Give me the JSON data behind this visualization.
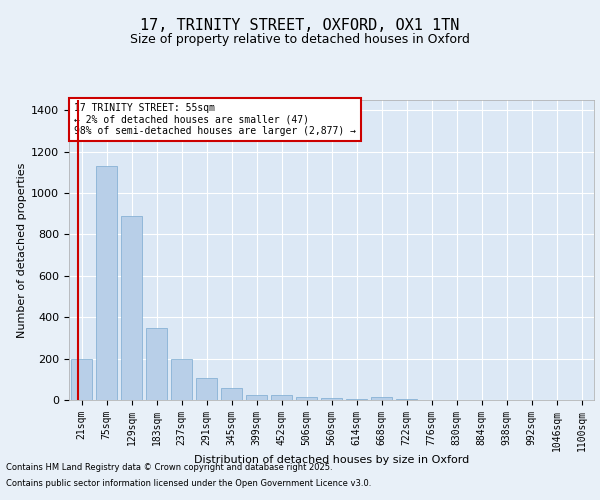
{
  "title_line1": "17, TRINITY STREET, OXFORD, OX1 1TN",
  "title_line2": "Size of property relative to detached houses in Oxford",
  "xlabel": "Distribution of detached houses by size in Oxford",
  "ylabel": "Number of detached properties",
  "bar_labels": [
    "21sqm",
    "75sqm",
    "129sqm",
    "183sqm",
    "237sqm",
    "291sqm",
    "345sqm",
    "399sqm",
    "452sqm",
    "506sqm",
    "560sqm",
    "614sqm",
    "668sqm",
    "722sqm",
    "776sqm",
    "830sqm",
    "884sqm",
    "938sqm",
    "992sqm",
    "1046sqm",
    "1100sqm"
  ],
  "bar_values": [
    197,
    1130,
    890,
    350,
    197,
    105,
    60,
    25,
    25,
    15,
    10,
    5,
    15,
    5,
    0,
    0,
    0,
    0,
    0,
    0,
    0
  ],
  "bar_color": "#b8cfe8",
  "bar_edge_color": "#7aaad0",
  "red_line_color": "#cc0000",
  "annotation_title": "17 TRINITY STREET: 55sqm",
  "annotation_line2": "← 2% of detached houses are smaller (47)",
  "annotation_line3": "98% of semi-detached houses are larger (2,877) →",
  "annotation_box_color": "#cc0000",
  "ylim": [
    0,
    1450
  ],
  "yticks": [
    0,
    200,
    400,
    600,
    800,
    1000,
    1200,
    1400
  ],
  "bg_color": "#e8f0f8",
  "plot_bg_color": "#dce8f5",
  "grid_color": "#ffffff",
  "footnote_line1": "Contains HM Land Registry data © Crown copyright and database right 2025.",
  "footnote_line2": "Contains public sector information licensed under the Open Government Licence v3.0.",
  "title_fontsize": 11,
  "subtitle_fontsize": 9,
  "tick_fontsize": 7,
  "ylabel_fontsize": 8,
  "xlabel_fontsize": 8,
  "annotation_fontsize": 7,
  "footnote_fontsize": 6
}
